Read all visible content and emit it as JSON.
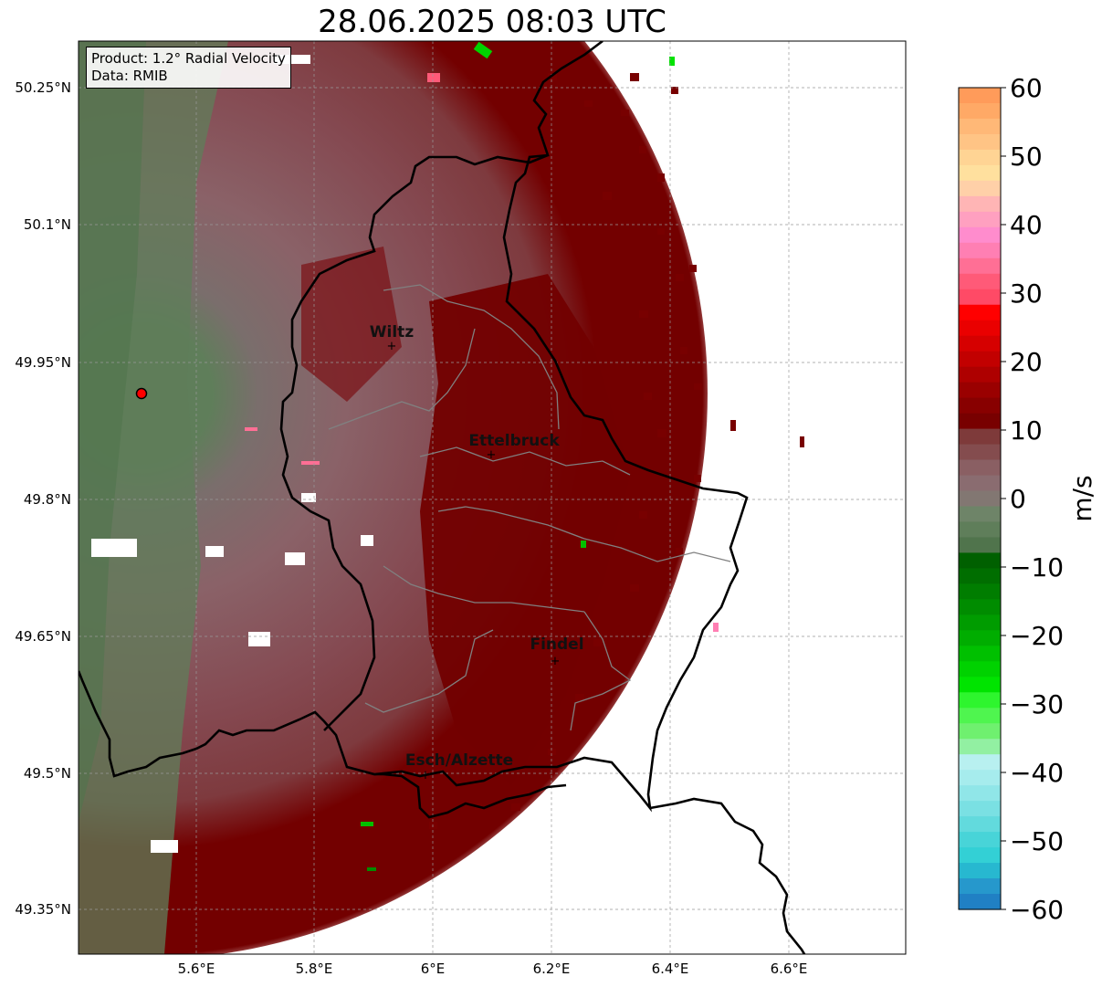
{
  "title": "28.06.2025 08:03 UTC",
  "info_box": {
    "product": "Product: 1.2° Radial Velocity",
    "data": "Data: RMIB"
  },
  "map": {
    "lat_ticks": [
      "50.25°N",
      "50.1°N",
      "49.95°N",
      "49.8°N",
      "49.65°N",
      "49.5°N",
      "49.35°N"
    ],
    "lon_ticks": [
      "5.6°E",
      "5.8°E",
      "6°E",
      "6.2°E",
      "6.4°E",
      "6.6°E"
    ],
    "cities": [
      {
        "name": "Wiltz"
      },
      {
        "name": "Ettelbruck"
      },
      {
        "name": "Findel"
      },
      {
        "name": "Esch/Alzette"
      }
    ],
    "radar_site_color": "#ff0000"
  },
  "colorbar": {
    "unit": "m/s",
    "min": -60,
    "max": 60,
    "tick_labels": [
      "60",
      "50",
      "40",
      "30",
      "20",
      "10",
      "0",
      "−10",
      "−20",
      "−30",
      "−40",
      "−50",
      "−60"
    ],
    "colors_top_to_bottom": [
      "#ff9b5a",
      "#ffa966",
      "#ffb877",
      "#ffc485",
      "#ffd494",
      "#ffe09e",
      "#ffd0a8",
      "#ffb5b5",
      "#ffa0c0",
      "#ff8ccd",
      "#ff7fb3",
      "#ff6f95",
      "#ff5a78",
      "#ff4a66",
      "#ff0000",
      "#ea0000",
      "#d60000",
      "#c20000",
      "#ae0000",
      "#9a0000",
      "#880000",
      "#780000",
      "#7e3a3a",
      "#844c4e",
      "#8a5f63",
      "#8a6c70",
      "#827772",
      "#6e8468",
      "#5f7e5a",
      "#50744c",
      "#006000",
      "#006e00",
      "#007d00",
      "#008c00",
      "#009c00",
      "#00ad00",
      "#00c000",
      "#00d200",
      "#00e400",
      "#2ef52e",
      "#4ff54f",
      "#6ff06f",
      "#92f0a2",
      "#b8f0f0",
      "#a6eced",
      "#90e6e8",
      "#7ae0e3",
      "#62dadd",
      "#48d4d8",
      "#33d0d5",
      "#27b8d0",
      "#2698cc",
      "#2080c4"
    ]
  }
}
